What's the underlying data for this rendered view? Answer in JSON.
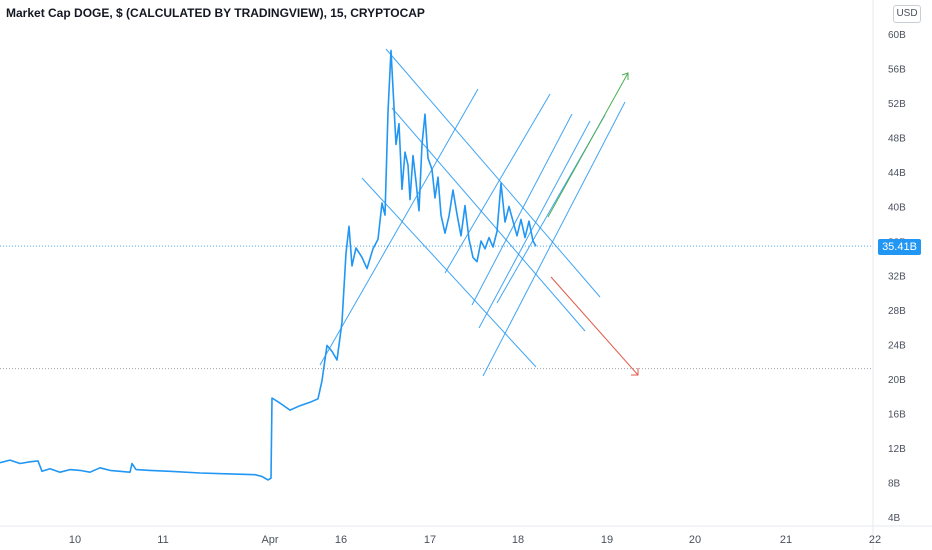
{
  "header": {
    "title": "Market Cap DOGE, $ (CALCULATED BY TRADINGVIEW), 15, CRYPTOCAP",
    "currency_label": "USD"
  },
  "price_label": "35.41B",
  "colors": {
    "series": "#2196f3",
    "trendlines": "#2196f3",
    "up_arrow": "#4caf50",
    "down_arrow": "#e05a4a",
    "price_tag_bg": "#2196f3",
    "grid_axis": "#e6e9ef"
  },
  "chart_data": {
    "type": "line",
    "title": "Market Cap DOGE, $ (CALCULATED BY TRADINGVIEW), 15, CRYPTOCAP",
    "xlabel": "",
    "ylabel": "",
    "y_unit": "B",
    "ylim": [
      4,
      60
    ],
    "x_ticks": [
      "10",
      "11",
      "Apr",
      "16",
      "17",
      "18",
      "19",
      "20",
      "21",
      "22"
    ],
    "y_ticks": [
      "60B",
      "56B",
      "52B",
      "48B",
      "44B",
      "40B",
      "36B",
      "32B",
      "28B",
      "24B",
      "20B",
      "16B",
      "12B",
      "8B",
      "4B"
    ],
    "last_value": 35.41,
    "series": [
      {
        "points": [
          [
            0,
            10.3
          ],
          [
            10,
            10.6
          ],
          [
            20,
            10.2
          ],
          [
            30,
            10.4
          ],
          [
            38,
            10.5
          ],
          [
            42,
            9.3
          ],
          [
            50,
            9.6
          ],
          [
            60,
            9.2
          ],
          [
            70,
            9.5
          ],
          [
            80,
            9.4
          ],
          [
            90,
            9.2
          ],
          [
            100,
            9.7
          ],
          [
            110,
            9.4
          ],
          [
            120,
            9.3
          ],
          [
            130,
            9.2
          ],
          [
            132,
            10.2
          ],
          [
            136,
            9.5
          ],
          [
            150,
            9.4
          ],
          [
            170,
            9.3
          ],
          [
            200,
            9.1
          ],
          [
            230,
            9.0
          ],
          [
            255,
            8.9
          ],
          [
            262,
            8.7
          ],
          [
            268,
            8.3
          ],
          [
            271,
            8.5
          ],
          [
            272,
            17.8
          ],
          [
            280,
            17.2
          ],
          [
            290,
            16.4
          ],
          [
            300,
            16.9
          ],
          [
            310,
            17.3
          ],
          [
            318,
            17.7
          ],
          [
            322,
            19.8
          ],
          [
            327,
            23.9
          ],
          [
            332,
            23.2
          ],
          [
            337,
            22.2
          ],
          [
            342,
            26.6
          ],
          [
            346,
            34.6
          ],
          [
            349,
            37.7
          ],
          [
            352,
            33.1
          ],
          [
            356,
            35.2
          ],
          [
            362,
            34.1
          ],
          [
            367,
            32.8
          ],
          [
            373,
            35.1
          ],
          [
            378,
            36.2
          ],
          [
            382,
            40.4
          ],
          [
            385,
            39.0
          ],
          [
            388,
            51.0
          ],
          [
            391,
            58.1
          ],
          [
            393,
            53.7
          ],
          [
            396,
            47.2
          ],
          [
            399,
            49.6
          ],
          [
            402,
            42.0
          ],
          [
            405,
            46.3
          ],
          [
            408,
            44.8
          ],
          [
            410,
            40.8
          ],
          [
            413,
            45.9
          ],
          [
            416,
            42.9
          ],
          [
            419,
            39.5
          ],
          [
            422,
            47.2
          ],
          [
            425,
            50.7
          ],
          [
            428,
            45.6
          ],
          [
            432,
            44.3
          ],
          [
            435,
            41.0
          ],
          [
            438,
            43.4
          ],
          [
            441,
            39.0
          ],
          [
            445,
            36.9
          ],
          [
            449,
            38.9
          ],
          [
            453,
            41.9
          ],
          [
            457,
            39.1
          ],
          [
            461,
            36.6
          ],
          [
            465,
            40.1
          ],
          [
            469,
            36.2
          ],
          [
            473,
            34.1
          ],
          [
            477,
            33.6
          ],
          [
            481,
            36.0
          ],
          [
            485,
            35.1
          ],
          [
            489,
            36.4
          ],
          [
            493,
            35.3
          ],
          [
            497,
            37.1
          ],
          [
            501,
            42.7
          ],
          [
            505,
            38.2
          ],
          [
            509,
            40.0
          ],
          [
            513,
            38.3
          ],
          [
            517,
            36.6
          ],
          [
            521,
            38.5
          ],
          [
            525,
            36.4
          ],
          [
            529,
            38.3
          ],
          [
            533,
            36.0
          ],
          [
            536,
            35.4
          ]
        ]
      }
    ],
    "annotations": [
      {
        "type": "descending_channel",
        "note": "parallel downward trendlines"
      },
      {
        "type": "ascending_channel",
        "note": "parallel upward trendlines"
      },
      {
        "type": "arrow",
        "direction": "up",
        "color": "#4caf50"
      },
      {
        "type": "arrow",
        "direction": "down",
        "color": "#e05a4a"
      }
    ]
  }
}
